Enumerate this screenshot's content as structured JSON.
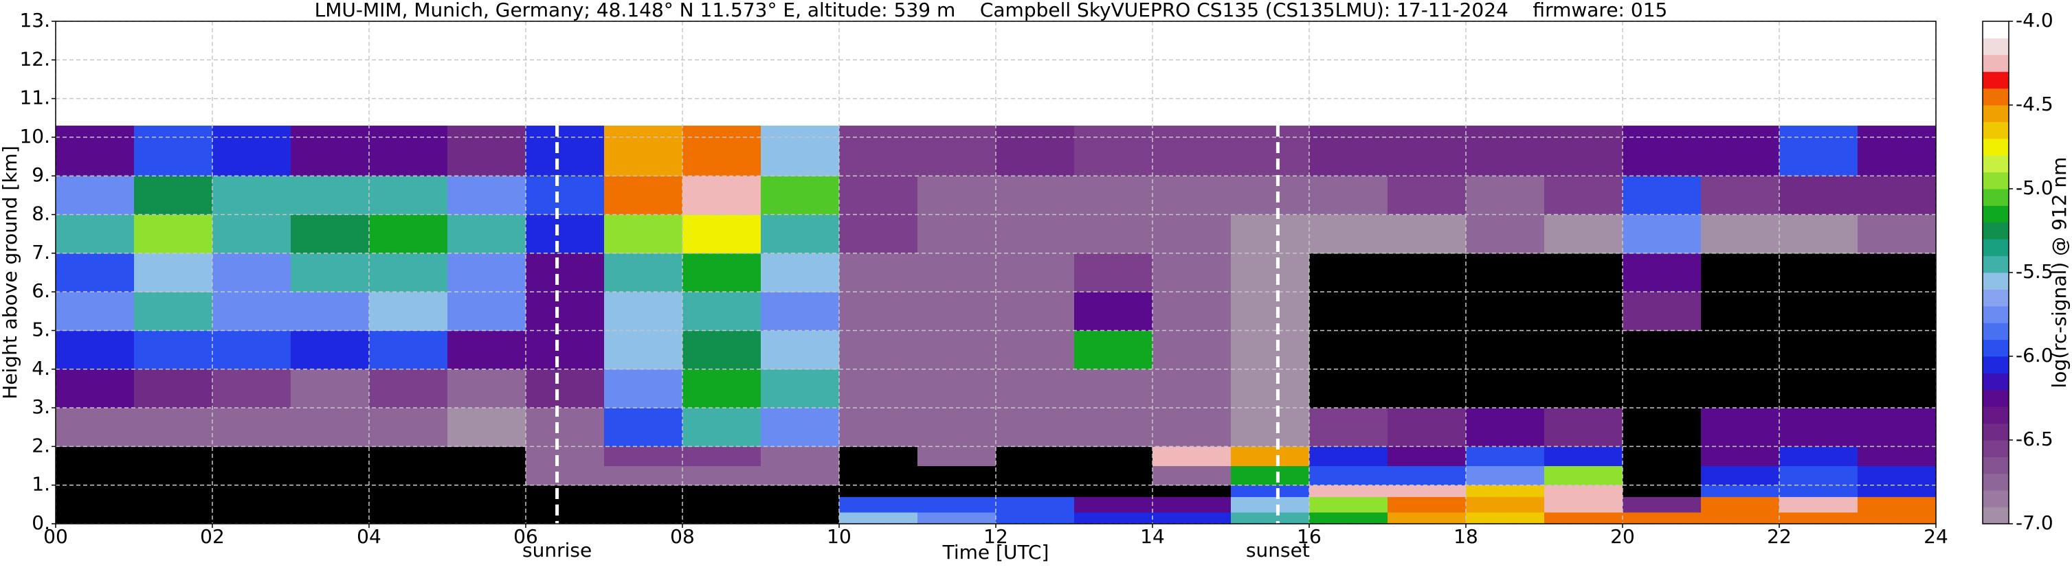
{
  "chart_data": {
    "type": "heatmap",
    "title": "LMU-MIM, Munich, Germany; 48.148° N 11.573° E, altitude: 539 m    Campbell SkyVUEPRO CS135 (CS135LMU): 17-11-2024    firmware: 015",
    "xlabel": "Time [UTC]",
    "ylabel": "Height above ground [km]",
    "colorbar_label": "log(rc-signal) @ 912 nm",
    "xlim": [
      0,
      24
    ],
    "ylim": [
      0,
      13
    ],
    "clim": [
      -7,
      -4
    ],
    "xticks": [
      {
        "value": 0,
        "label": "00"
      },
      {
        "value": 2,
        "label": "02"
      },
      {
        "value": 4,
        "label": "04"
      },
      {
        "value": 6,
        "label": "06"
      },
      {
        "value": 8,
        "label": "08"
      },
      {
        "value": 10,
        "label": "10"
      },
      {
        "value": 12,
        "label": "12"
      },
      {
        "value": 14,
        "label": "14"
      },
      {
        "value": 16,
        "label": "16"
      },
      {
        "value": 18,
        "label": "18"
      },
      {
        "value": 20,
        "label": "20"
      },
      {
        "value": 22,
        "label": "22"
      },
      {
        "value": 24,
        "label": "24"
      }
    ],
    "yticks": [
      {
        "value": 0,
        "label": "0."
      },
      {
        "value": 1,
        "label": "1."
      },
      {
        "value": 2,
        "label": "2."
      },
      {
        "value": 3,
        "label": "3."
      },
      {
        "value": 4,
        "label": "4."
      },
      {
        "value": 5,
        "label": "5."
      },
      {
        "value": 6,
        "label": "6."
      },
      {
        "value": 7,
        "label": "7."
      },
      {
        "value": 8,
        "label": "8."
      },
      {
        "value": 9,
        "label": "9."
      },
      {
        "value": 10,
        "label": "10."
      },
      {
        "value": 11,
        "label": "11."
      },
      {
        "value": 12,
        "label": "12."
      },
      {
        "value": 13,
        "label": "13."
      }
    ],
    "cticks": [
      {
        "value": -7,
        "label": "-7.0"
      },
      {
        "value": -6.5,
        "label": "-6.5"
      },
      {
        "value": -6,
        "label": "-6.0"
      },
      {
        "value": -5.5,
        "label": "-5.5"
      },
      {
        "value": -5,
        "label": "-5.0"
      },
      {
        "value": -4.5,
        "label": "-4.5"
      },
      {
        "value": -4,
        "label": "-4.0"
      }
    ],
    "grid": true,
    "under_color": "#000000",
    "colors": [
      "#a38fa6",
      "#9a7aa0",
      "#8f6698",
      "#865391",
      "#7b3f8b",
      "#702b87",
      "#651886",
      "#5a0a8c",
      "#3a10b8",
      "#1e28e0",
      "#2a50f0",
      "#4a70f2",
      "#6a8cf2",
      "#88a4f0",
      "#8ec0e8",
      "#40b0a8",
      "#18a080",
      "#10904c",
      "#10a820",
      "#50c828",
      "#90e030",
      "#c8f040",
      "#f0f000",
      "#f0c800",
      "#f0a000",
      "#f07000",
      "#f01010",
      "#f0b8b8",
      "#f0dcdc",
      "#ffffff"
    ],
    "annotations": [
      {
        "text": "sunrise",
        "x": 6.4
      },
      {
        "text": "sunset",
        "x": 15.6
      }
    ],
    "x_edges": [
      0,
      1,
      2,
      3,
      4,
      5,
      6,
      7,
      8,
      9,
      10,
      11,
      12,
      13,
      14,
      15,
      16,
      17,
      18,
      19,
      20,
      21,
      22,
      23,
      24
    ],
    "y_edges": [
      0,
      0.3,
      0.7,
      1,
      1.5,
      2,
      3,
      4,
      5,
      6,
      7,
      8,
      9,
      10.3
    ],
    "z": [
      [
        -7.5,
        -7.5,
        -7.5,
        -7.5,
        -7.5,
        -7.5,
        -7.5,
        -7.5,
        -7.5,
        -7.5,
        -5.6,
        -5.8,
        -6.0,
        -6.1,
        -6.1,
        -5.5,
        -5.2,
        -4.6,
        -4.7,
        -4.5,
        -4.4,
        -4.5,
        -4.5,
        -4.5
      ],
      [
        -7.5,
        -7.5,
        -7.5,
        -7.5,
        -7.5,
        -7.5,
        -7.5,
        -7.5,
        -7.5,
        -7.5,
        -5.9,
        -6.0,
        -6.0,
        -6.2,
        -6.3,
        -5.6,
        -5.0,
        -4.4,
        -4.6,
        -4.3,
        -6.5,
        -4.4,
        -4.3,
        -4.4
      ],
      [
        -7.5,
        -7.5,
        -7.5,
        -7.5,
        -7.5,
        -7.5,
        -7.5,
        -7.5,
        -7.5,
        -7.5,
        -7.5,
        -7.5,
        -7.5,
        -7.5,
        -7.5,
        -6.0,
        -4.3,
        -4.2,
        -4.7,
        -4.3,
        -7.5,
        -6.0,
        -6.0,
        -6.1
      ],
      [
        -7.5,
        -7.5,
        -7.5,
        -7.5,
        -7.5,
        -7.5,
        -6.8,
        -6.8,
        -6.7,
        -6.8,
        -7.5,
        -7.5,
        -7.5,
        -7.5,
        -6.7,
        -5.2,
        -6.0,
        -6.0,
        -5.8,
        -5.0,
        -7.5,
        -6.1,
        -6.0,
        -6.1
      ],
      [
        -7.5,
        -7.5,
        -7.5,
        -7.5,
        -7.5,
        -7.5,
        -6.8,
        -6.6,
        -6.6,
        -6.7,
        -7.5,
        -6.8,
        -7.5,
        -7.5,
        -4.3,
        -4.6,
        -6.1,
        -6.2,
        -5.9,
        -6.1,
        -7.5,
        -6.2,
        -6.1,
        -6.2
      ],
      [
        -6.7,
        -6.8,
        -6.7,
        -6.8,
        -6.8,
        -6.9,
        -6.7,
        -6.0,
        -5.4,
        -5.8,
        -6.8,
        -6.8,
        -6.8,
        -6.8,
        -6.8,
        -6.9,
        -6.6,
        -6.4,
        -6.2,
        -6.5,
        -7.5,
        -6.3,
        -6.2,
        -6.3
      ],
      [
        -6.3,
        -6.5,
        -6.6,
        -6.7,
        -6.6,
        -6.7,
        -6.5,
        -5.7,
        -5.2,
        -5.4,
        -6.8,
        -6.8,
        -6.8,
        -6.8,
        -6.8,
        -6.9,
        -7.5,
        -7.5,
        -7.5,
        -7.5,
        -7.5,
        -7.5,
        -7.5,
        -7.5
      ],
      [
        -6.1,
        -5.9,
        -6.0,
        -6.1,
        -6.0,
        -6.2,
        -6.2,
        -5.6,
        -5.3,
        -5.6,
        -6.7,
        -6.8,
        -6.8,
        -5.2,
        -6.8,
        -6.9,
        -7.5,
        -7.5,
        -7.5,
        -7.5,
        -7.5,
        -7.5,
        -7.5,
        -7.5
      ],
      [
        -5.8,
        -5.5,
        -5.8,
        -5.7,
        -5.6,
        -5.8,
        -6.2,
        -5.6,
        -5.4,
        -5.7,
        -6.7,
        -6.8,
        -6.8,
        -6.3,
        -6.8,
        -6.9,
        -7.5,
        -7.5,
        -7.5,
        -7.5,
        -6.5,
        -7.5,
        -7.5,
        -7.5
      ],
      [
        -5.9,
        -5.6,
        -5.7,
        -5.5,
        -5.4,
        -5.7,
        -6.2,
        -5.5,
        -5.2,
        -5.6,
        -6.7,
        -6.8,
        -6.8,
        -6.6,
        -6.8,
        -6.9,
        -7.5,
        -7.5,
        -7.5,
        -7.5,
        -6.3,
        -7.5,
        -7.5,
        -7.5
      ],
      [
        -5.5,
        -5.0,
        -5.4,
        -5.3,
        -5.2,
        -5.5,
        -6.1,
        -5.0,
        -4.8,
        -5.4,
        -6.6,
        -6.7,
        -6.8,
        -6.8,
        -6.8,
        -6.9,
        -6.9,
        -6.9,
        -6.8,
        -6.9,
        -5.8,
        -6.9,
        -6.9,
        -6.7
      ],
      [
        -5.8,
        -5.3,
        -5.5,
        -5.4,
        -5.5,
        -5.7,
        -6.0,
        -4.4,
        -4.3,
        -5.1,
        -6.6,
        -6.7,
        -6.7,
        -6.8,
        -6.8,
        -6.8,
        -6.7,
        -6.6,
        -6.7,
        -6.6,
        -5.9,
        -6.6,
        -6.5,
        -6.4
      ],
      [
        -6.2,
        -6.0,
        -6.1,
        -6.2,
        -6.3,
        -6.4,
        -6.1,
        -4.6,
        -4.4,
        -5.6,
        -6.6,
        -6.6,
        -6.5,
        -6.6,
        -6.6,
        -6.6,
        -6.5,
        -6.5,
        -6.5,
        -6.4,
        -6.3,
        -6.3,
        -6.0,
        -6.2
      ]
    ]
  }
}
